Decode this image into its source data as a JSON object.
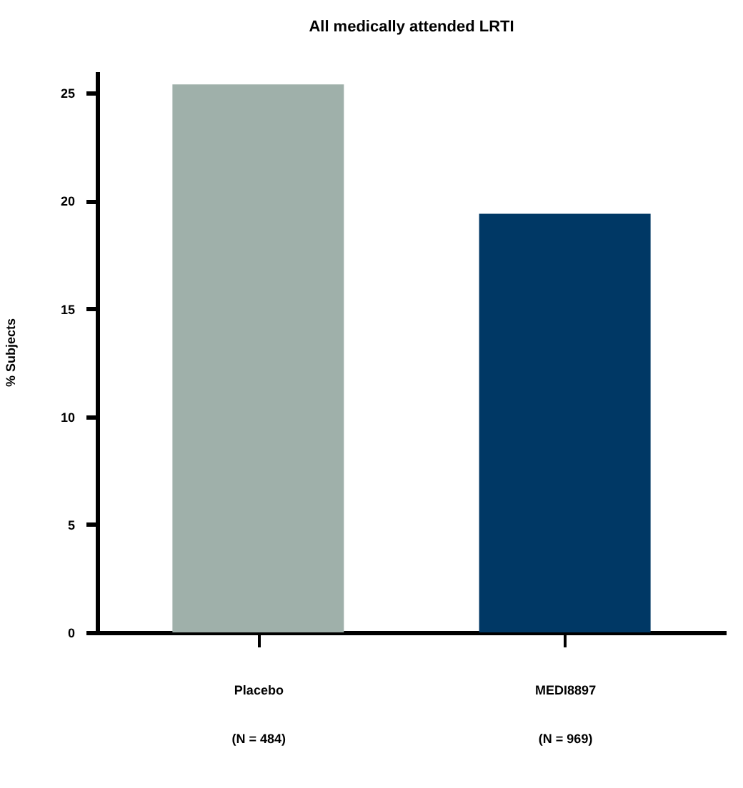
{
  "chart_data": {
    "type": "bar",
    "title": "All medically attended LRTI",
    "ylabel": "% Subjects",
    "categories": [
      "Placebo\n(N = 484)",
      "MEDI8897\n(N = 969)"
    ],
    "values": [
      25.4,
      19.4
    ],
    "colors": [
      "#9fb0aa",
      "#003865"
    ],
    "ylim": [
      0,
      26
    ],
    "yticks": [
      0,
      5,
      10,
      15,
      20,
      25
    ],
    "grid": false,
    "legend": false
  }
}
